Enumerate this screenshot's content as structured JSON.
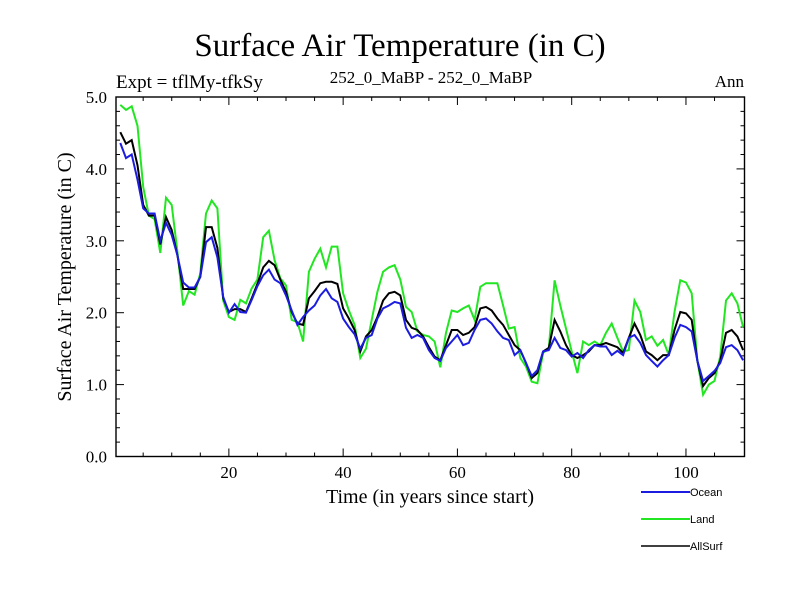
{
  "chart_data": {
    "type": "line",
    "title": "Surface Air Temperature (in C)",
    "left_subtitle": "Expt = tflMy-tfkSy",
    "center_subtitle": "252_0_MaBP - 252_0_MaBP",
    "right_subtitle": "Ann",
    "xlabel": "Time (in years since start)",
    "ylabel": "Surface Air Temperature (in C)",
    "xlim": [
      0,
      110
    ],
    "ylim": [
      0.0,
      5.0
    ],
    "x_ticks": [
      20,
      40,
      60,
      80,
      100
    ],
    "x_tick_labels": [
      "20",
      "40",
      "60",
      "80",
      "100"
    ],
    "x_minor_step": 5,
    "y_ticks": [
      0.0,
      1.0,
      2.0,
      3.0,
      4.0,
      5.0
    ],
    "y_tick_labels": [
      "0.0",
      "1.0",
      "2.0",
      "3.0",
      "4.0",
      "5.0"
    ],
    "y_minor_step": 0.2,
    "grid": false,
    "legend_position": "bottom-right (below plot)",
    "x_start": 1,
    "x_step": 1,
    "series": [
      {
        "name": "Ocean",
        "color": "#1c1ce0",
        "values": [
          4.36,
          4.15,
          4.2,
          3.85,
          3.45,
          3.38,
          3.38,
          3.0,
          3.25,
          3.08,
          2.8,
          2.42,
          2.35,
          2.35,
          2.5,
          2.98,
          3.05,
          2.77,
          2.22,
          2.0,
          2.12,
          2.01,
          2.0,
          2.18,
          2.37,
          2.52,
          2.6,
          2.46,
          2.41,
          2.24,
          2.03,
          1.83,
          1.94,
          2.03,
          2.1,
          2.24,
          2.33,
          2.2,
          2.15,
          1.92,
          1.8,
          1.7,
          1.5,
          1.65,
          1.69,
          1.92,
          2.06,
          2.1,
          2.15,
          2.13,
          1.79,
          1.65,
          1.69,
          1.65,
          1.48,
          1.37,
          1.33,
          1.51,
          1.6,
          1.69,
          1.55,
          1.58,
          1.76,
          1.9,
          1.92,
          1.85,
          1.74,
          1.65,
          1.62,
          1.41,
          1.48,
          1.3,
          1.12,
          1.2,
          1.46,
          1.48,
          1.65,
          1.51,
          1.48,
          1.39,
          1.44,
          1.37,
          1.48,
          1.55,
          1.53,
          1.53,
          1.41,
          1.47,
          1.41,
          1.65,
          1.69,
          1.58,
          1.41,
          1.33,
          1.25,
          1.34,
          1.41,
          1.65,
          1.83,
          1.8,
          1.74,
          1.33,
          1.05,
          1.12,
          1.19,
          1.3,
          1.52,
          1.55,
          1.48,
          1.34
        ]
      },
      {
        "name": "Land",
        "color": "#22e622",
        "values": [
          4.89,
          4.82,
          4.87,
          4.6,
          3.75,
          3.35,
          3.3,
          2.83,
          3.6,
          3.5,
          2.85,
          2.1,
          2.3,
          2.25,
          2.55,
          3.38,
          3.56,
          3.45,
          2.17,
          1.94,
          1.9,
          2.18,
          2.13,
          2.34,
          2.46,
          3.05,
          3.14,
          2.73,
          2.48,
          2.38,
          1.9,
          1.87,
          1.6,
          2.57,
          2.75,
          2.89,
          2.63,
          2.92,
          2.92,
          2.27,
          2.03,
          1.83,
          1.37,
          1.5,
          1.9,
          2.29,
          2.57,
          2.63,
          2.66,
          2.46,
          2.08,
          2.01,
          1.74,
          1.69,
          1.67,
          1.6,
          1.24,
          1.72,
          2.03,
          2.01,
          2.06,
          2.1,
          1.9,
          2.36,
          2.41,
          2.41,
          2.41,
          2.1,
          1.78,
          1.8,
          1.37,
          1.25,
          1.04,
          1.02,
          1.44,
          1.51,
          2.45,
          2.1,
          1.78,
          1.46,
          1.16,
          1.6,
          1.55,
          1.6,
          1.55,
          1.72,
          1.85,
          1.65,
          1.46,
          1.48,
          2.17,
          2.01,
          1.62,
          1.67,
          1.54,
          1.62,
          1.41,
          2.01,
          2.45,
          2.42,
          2.27,
          1.33,
          0.86,
          1.0,
          1.05,
          1.39,
          2.17,
          2.27,
          2.13,
          1.8
        ]
      },
      {
        "name": "AllSurf",
        "color": "#000000",
        "values": [
          4.51,
          4.35,
          4.4,
          4.05,
          3.5,
          3.35,
          3.35,
          2.95,
          3.33,
          3.15,
          2.8,
          2.33,
          2.33,
          2.33,
          2.5,
          3.19,
          3.19,
          2.9,
          2.2,
          2.01,
          2.05,
          2.05,
          2.01,
          2.2,
          2.4,
          2.63,
          2.72,
          2.66,
          2.46,
          2.29,
          2.01,
          1.85,
          1.83,
          2.2,
          2.3,
          2.41,
          2.43,
          2.43,
          2.4,
          2.06,
          1.92,
          1.76,
          1.46,
          1.67,
          1.76,
          1.94,
          2.17,
          2.27,
          2.29,
          2.24,
          1.9,
          1.79,
          1.76,
          1.67,
          1.52,
          1.39,
          1.34,
          1.55,
          1.76,
          1.76,
          1.69,
          1.72,
          1.8,
          2.06,
          2.08,
          2.03,
          1.92,
          1.83,
          1.69,
          1.55,
          1.48,
          1.3,
          1.09,
          1.16,
          1.46,
          1.51,
          1.9,
          1.74,
          1.55,
          1.41,
          1.37,
          1.41,
          1.46,
          1.55,
          1.55,
          1.58,
          1.55,
          1.52,
          1.44,
          1.65,
          1.85,
          1.69,
          1.46,
          1.41,
          1.34,
          1.41,
          1.41,
          1.76,
          2.01,
          1.99,
          1.9,
          1.33,
          0.98,
          1.09,
          1.16,
          1.33,
          1.72,
          1.76,
          1.67,
          1.48
        ]
      }
    ]
  }
}
